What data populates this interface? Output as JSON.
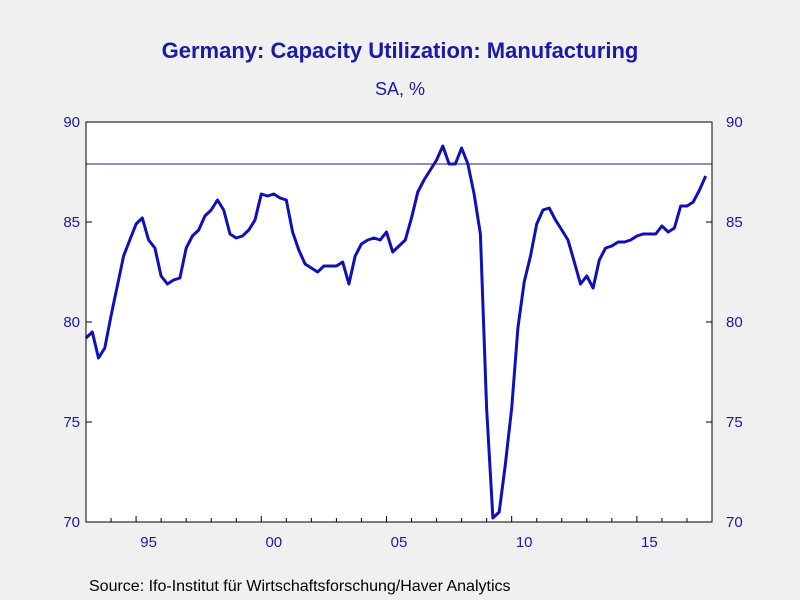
{
  "chart_data": {
    "type": "line",
    "title": "Germany: Capacity Utilization: Manufacturing",
    "subtitle": "SA, %",
    "source": "Source:  Ifo-Institut für Wirtschaftsforschung/Haver Analytics",
    "ylim": [
      70,
      90
    ],
    "yticks": [
      70,
      75,
      80,
      85,
      90
    ],
    "xlim": [
      1993.0,
      2018.0
    ],
    "xticks": [
      {
        "value": 1995,
        "label": "95"
      },
      {
        "value": 2000,
        "label": "00"
      },
      {
        "value": 2005,
        "label": "05"
      },
      {
        "value": 2010,
        "label": "10"
      },
      {
        "value": 2015,
        "label": "15"
      }
    ],
    "reference_line": 87.9,
    "grid": false,
    "colors": {
      "line": "#1010b8",
      "text": "#1a1aa6",
      "axis": "#000000",
      "plot_bg": "#ffffff",
      "page_bg": "#f0f0f0"
    },
    "series": [
      {
        "x": [
          1993.0,
          1993.25,
          1993.5,
          1993.75,
          1994.0,
          1994.25,
          1994.5,
          1994.75,
          1995.0,
          1995.25,
          1995.5,
          1995.75,
          1996.0,
          1996.25,
          1996.5,
          1996.75,
          1997.0,
          1997.25,
          1997.5,
          1997.75,
          1998.0,
          1998.25,
          1998.5,
          1998.75,
          1999.0,
          1999.25,
          1999.5,
          1999.75,
          2000.0,
          2000.25,
          2000.5,
          2000.75,
          2001.0,
          2001.25,
          2001.5,
          2001.75,
          2002.0,
          2002.25,
          2002.5,
          2002.75,
          2003.0,
          2003.25,
          2003.5,
          2003.75,
          2004.0,
          2004.25,
          2004.5,
          2004.75,
          2005.0,
          2005.25,
          2005.5,
          2005.75,
          2006.0,
          2006.25,
          2006.5,
          2006.75,
          2007.0,
          2007.25,
          2007.5,
          2007.75,
          2008.0,
          2008.25,
          2008.5,
          2008.75,
          2009.0,
          2009.25,
          2009.5,
          2009.75,
          2010.0,
          2010.25,
          2010.5,
          2010.75,
          2011.0,
          2011.25,
          2011.5,
          2011.75,
          2012.0,
          2012.25,
          2012.5,
          2012.75,
          2013.0,
          2013.25,
          2013.5,
          2013.75,
          2014.0,
          2014.25,
          2014.5,
          2014.75,
          2015.0,
          2015.25,
          2015.5,
          2015.75,
          2016.0,
          2016.25,
          2016.5,
          2016.75,
          2017.0,
          2017.25,
          2017.5,
          2017.75
        ],
        "values": [
          79.2,
          79.5,
          78.2,
          78.7,
          80.3,
          81.8,
          83.3,
          84.1,
          84.9,
          85.2,
          84.1,
          83.7,
          82.3,
          81.9,
          82.1,
          82.2,
          83.7,
          84.3,
          84.6,
          85.3,
          85.6,
          86.1,
          85.6,
          84.4,
          84.2,
          84.3,
          84.6,
          85.1,
          86.4,
          86.3,
          86.4,
          86.2,
          86.1,
          84.5,
          83.6,
          82.9,
          82.7,
          82.5,
          82.8,
          82.8,
          82.8,
          83.0,
          81.9,
          83.3,
          83.9,
          84.1,
          84.2,
          84.1,
          84.5,
          83.5,
          83.8,
          84.1,
          85.2,
          86.5,
          87.1,
          87.6,
          88.1,
          88.8,
          87.9,
          87.9,
          88.7,
          87.9,
          86.4,
          84.4,
          75.7,
          70.2,
          70.5,
          72.9,
          75.7,
          79.7,
          82.0,
          83.3,
          84.9,
          85.6,
          85.7,
          85.1,
          84.6,
          84.1,
          83.0,
          81.9,
          82.3,
          81.7,
          83.1,
          83.7,
          83.8,
          84.0,
          84.0,
          84.1,
          84.3,
          84.4,
          84.4,
          84.4,
          84.8,
          84.5,
          84.7,
          85.8,
          85.8,
          86.0,
          86.6,
          87.3
        ]
      }
    ]
  },
  "right_axis_labels": [
    "70",
    "75",
    "80",
    "85",
    "90"
  ]
}
